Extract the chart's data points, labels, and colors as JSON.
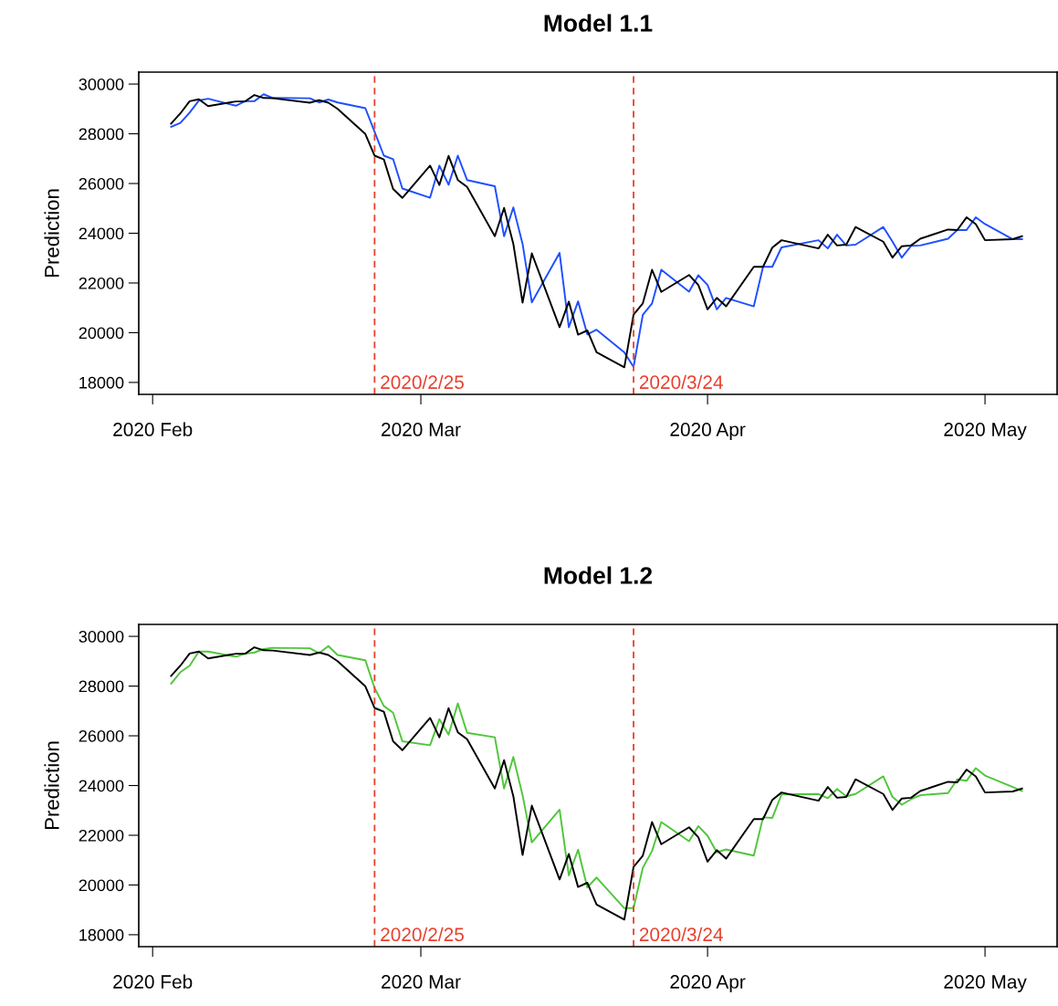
{
  "chart_data": [
    {
      "type": "line",
      "title": "Model 1.1",
      "ylabel": "Prediction",
      "x": [
        "2020-02-03",
        "2020-02-04",
        "2020-02-05",
        "2020-02-06",
        "2020-02-07",
        "2020-02-10",
        "2020-02-11",
        "2020-02-12",
        "2020-02-13",
        "2020-02-14",
        "2020-02-18",
        "2020-02-19",
        "2020-02-20",
        "2020-02-21",
        "2020-02-24",
        "2020-02-25",
        "2020-02-26",
        "2020-02-27",
        "2020-02-28",
        "2020-03-02",
        "2020-03-03",
        "2020-03-04",
        "2020-03-05",
        "2020-03-06",
        "2020-03-09",
        "2020-03-10",
        "2020-03-11",
        "2020-03-12",
        "2020-03-13",
        "2020-03-16",
        "2020-03-17",
        "2020-03-18",
        "2020-03-19",
        "2020-03-20",
        "2020-03-23",
        "2020-03-24",
        "2020-03-25",
        "2020-03-26",
        "2020-03-27",
        "2020-03-30",
        "2020-03-31",
        "2020-04-01",
        "2020-04-02",
        "2020-04-03",
        "2020-04-06",
        "2020-04-07",
        "2020-04-08",
        "2020-04-09",
        "2020-04-13",
        "2020-04-14",
        "2020-04-15",
        "2020-04-16",
        "2020-04-17",
        "2020-04-20",
        "2020-04-21",
        "2020-04-22",
        "2020-04-23",
        "2020-04-24",
        "2020-04-27",
        "2020-04-28",
        "2020-04-29",
        "2020-04-30",
        "2020-05-01",
        "2020-05-04",
        "2020-05-05"
      ],
      "series": [
        {
          "color": "#1f4fff",
          "values": [
            28280,
            28440,
            28850,
            29340,
            29410,
            29130,
            29310,
            29310,
            29590,
            29440,
            29430,
            29260,
            29380,
            29260,
            29030,
            28080,
            27120,
            26980,
            25800,
            25430,
            26720,
            25950,
            27120,
            26140,
            25890,
            23880,
            25040,
            23570,
            21220,
            23210,
            20220,
            21260,
            19930,
            20120,
            19210,
            18620,
            20720,
            21180,
            22530,
            21650,
            22310,
            21920,
            20940,
            21400,
            21060,
            22650,
            22650,
            23430,
            23720,
            23390,
            23940,
            23510,
            23540,
            24250,
            23660,
            23020,
            23490,
            23510,
            23780,
            24130,
            24130,
            24640,
            24370,
            23760,
            23760
          ]
        },
        {
          "color": "#000000",
          "values": [
            28410,
            28820,
            29310,
            29390,
            29110,
            29300,
            29300,
            29560,
            29440,
            29430,
            29250,
            29350,
            29250,
            29000,
            27990,
            27120,
            26970,
            25780,
            25420,
            26720,
            25940,
            27110,
            26140,
            25860,
            23880,
            25020,
            23570,
            21210,
            23190,
            20220,
            21250,
            19920,
            20090,
            19210,
            18610,
            20730,
            21180,
            22530,
            21640,
            22320,
            21920,
            20940,
            21400,
            21060,
            22650,
            22650,
            23420,
            23720,
            23390,
            23940,
            23510,
            23540,
            24250,
            23660,
            23020,
            23480,
            23510,
            23780,
            24150,
            24130,
            24640,
            24370,
            23720,
            23760,
            23880
          ]
        }
      ],
      "xlim": [
        "2020-01-30T12:00",
        "2020-05-08T19:00"
      ],
      "xticks": [
        {
          "value": "2020-02-01",
          "label": "2020 Feb"
        },
        {
          "value": "2020-03-01",
          "label": "2020 Mar"
        },
        {
          "value": "2020-04-01",
          "label": "2020 Apr"
        },
        {
          "value": "2020-05-01",
          "label": "2020 May"
        }
      ],
      "ylim": [
        17520,
        30480
      ],
      "yticks": [
        18000,
        20000,
        22000,
        24000,
        26000,
        28000,
        30000
      ],
      "ref_lines": [
        {
          "axis": "x",
          "value": "2020-02-25",
          "label": "2020/2/25",
          "color": "#e8412f",
          "line_style": "dashed"
        },
        {
          "axis": "x",
          "value": "2020-03-24",
          "label": "2020/3/24",
          "color": "#e8412f",
          "line_style": "dashed"
        }
      ],
      "grid": false,
      "line_style": "solid",
      "marker": "none"
    },
    {
      "type": "line",
      "title": "Model 1.2",
      "ylabel": "Prediction",
      "x": [
        "2020-02-03",
        "2020-02-04",
        "2020-02-05",
        "2020-02-06",
        "2020-02-07",
        "2020-02-10",
        "2020-02-11",
        "2020-02-12",
        "2020-02-13",
        "2020-02-14",
        "2020-02-18",
        "2020-02-19",
        "2020-02-20",
        "2020-02-21",
        "2020-02-24",
        "2020-02-25",
        "2020-02-26",
        "2020-02-27",
        "2020-02-28",
        "2020-03-02",
        "2020-03-03",
        "2020-03-04",
        "2020-03-05",
        "2020-03-06",
        "2020-03-09",
        "2020-03-10",
        "2020-03-11",
        "2020-03-12",
        "2020-03-13",
        "2020-03-16",
        "2020-03-17",
        "2020-03-18",
        "2020-03-19",
        "2020-03-20",
        "2020-03-23",
        "2020-03-24",
        "2020-03-25",
        "2020-03-26",
        "2020-03-27",
        "2020-03-30",
        "2020-03-31",
        "2020-04-01",
        "2020-04-02",
        "2020-04-03",
        "2020-04-06",
        "2020-04-07",
        "2020-04-08",
        "2020-04-09",
        "2020-04-13",
        "2020-04-14",
        "2020-04-15",
        "2020-04-16",
        "2020-04-17",
        "2020-04-20",
        "2020-04-21",
        "2020-04-22",
        "2020-04-23",
        "2020-04-24",
        "2020-04-27",
        "2020-04-28",
        "2020-04-29",
        "2020-04-30",
        "2020-05-01",
        "2020-05-04",
        "2020-05-05"
      ],
      "series": [
        {
          "color": "#4fc63b",
          "values": [
            28100,
            28560,
            28820,
            29390,
            29390,
            29180,
            29300,
            29350,
            29490,
            29540,
            29520,
            29320,
            29610,
            29250,
            29040,
            27920,
            27200,
            26930,
            25780,
            25620,
            26670,
            26050,
            27300,
            26120,
            25940,
            23880,
            25150,
            23610,
            21710,
            23030,
            20390,
            21420,
            19900,
            20300,
            19070,
            19070,
            20690,
            21370,
            22530,
            21760,
            22370,
            21980,
            21310,
            21430,
            21180,
            22720,
            22700,
            23640,
            23660,
            23490,
            23860,
            23570,
            23660,
            24370,
            23540,
            23230,
            23450,
            23610,
            23700,
            24250,
            24190,
            24700,
            24400,
            23940,
            23780
          ]
        },
        {
          "color": "#000000",
          "values": [
            28410,
            28820,
            29310,
            29390,
            29110,
            29300,
            29300,
            29560,
            29440,
            29430,
            29250,
            29350,
            29250,
            29000,
            27990,
            27120,
            26970,
            25780,
            25420,
            26720,
            25940,
            27110,
            26140,
            25860,
            23880,
            25020,
            23570,
            21210,
            23190,
            20220,
            21250,
            19920,
            20090,
            19210,
            18610,
            20730,
            21180,
            22530,
            21640,
            22320,
            21920,
            20940,
            21400,
            21060,
            22650,
            22650,
            23420,
            23720,
            23390,
            23940,
            23510,
            23540,
            24250,
            23660,
            23020,
            23480,
            23510,
            23780,
            24150,
            24130,
            24640,
            24370,
            23720,
            23760,
            23880
          ]
        }
      ],
      "xlim": [
        "2020-01-30T12:00",
        "2020-05-08T19:00"
      ],
      "xticks": [
        {
          "value": "2020-02-01",
          "label": "2020 Feb"
        },
        {
          "value": "2020-03-01",
          "label": "2020 Mar"
        },
        {
          "value": "2020-04-01",
          "label": "2020 Apr"
        },
        {
          "value": "2020-05-01",
          "label": "2020 May"
        }
      ],
      "ylim": [
        17520,
        30480
      ],
      "yticks": [
        18000,
        20000,
        22000,
        24000,
        26000,
        28000,
        30000
      ],
      "ref_lines": [
        {
          "axis": "x",
          "value": "2020-02-25",
          "label": "2020/2/25",
          "color": "#e8412f",
          "line_style": "dashed"
        },
        {
          "axis": "x",
          "value": "2020-03-24",
          "label": "2020/3/24",
          "color": "#e8412f",
          "line_style": "dashed"
        }
      ],
      "grid": false,
      "line_style": "solid",
      "marker": "none"
    }
  ]
}
